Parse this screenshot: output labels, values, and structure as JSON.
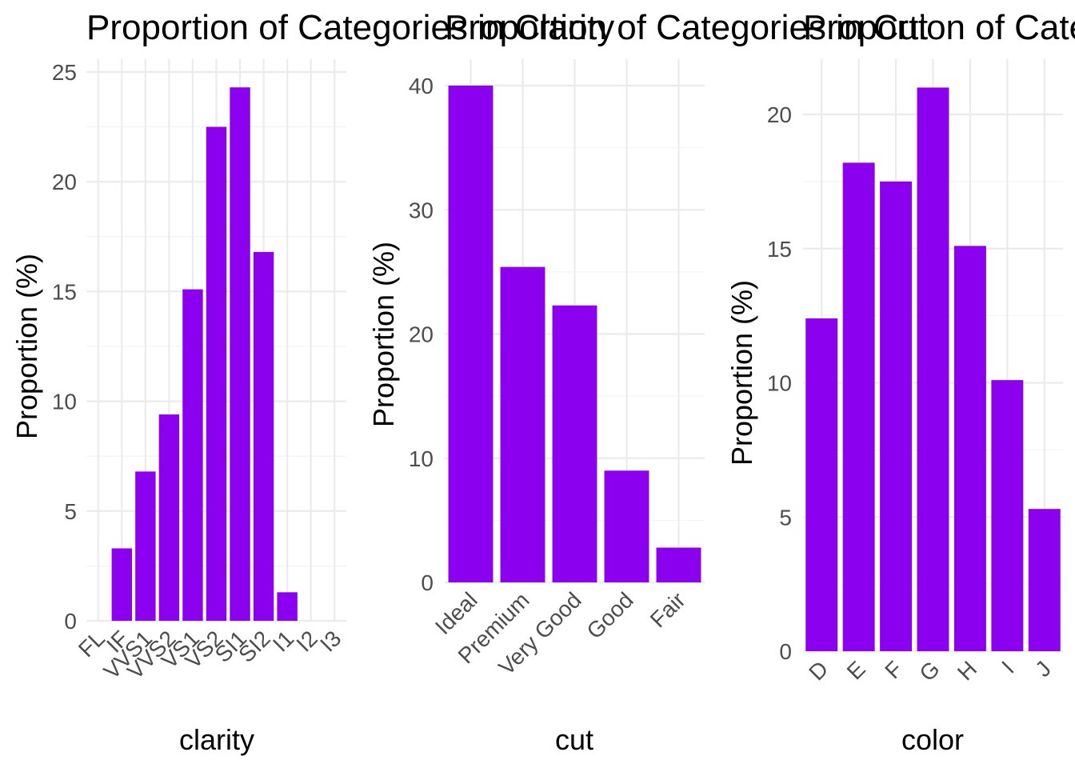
{
  "chart_data": [
    {
      "type": "bar",
      "title": "Proportion of Categories in Clarity",
      "xlabel": "clarity",
      "ylabel": "Proportion (%)",
      "categories": [
        "FL",
        "IF",
        "VVS1",
        "VVS2",
        "VS1",
        "VS2",
        "SI1",
        "SI2",
        "I1",
        "I2",
        "I3"
      ],
      "values": [
        0,
        3.3,
        6.8,
        9.4,
        15.1,
        22.5,
        24.3,
        16.8,
        1.3,
        0,
        0
      ],
      "ylim": [
        0,
        25
      ],
      "yticks": [
        0,
        5,
        10,
        15,
        20,
        25
      ],
      "bar_color": "#8B00EE",
      "grid": true
    },
    {
      "type": "bar",
      "title": "Proportion of Categories in Cut",
      "xlabel": "cut",
      "ylabel": "Proportion (%)",
      "categories": [
        "Ideal",
        "Premium",
        "Very Good",
        "Good",
        "Fair"
      ],
      "values": [
        40.0,
        25.4,
        22.3,
        9.0,
        2.8
      ],
      "ylim": [
        0,
        40
      ],
      "yticks": [
        0,
        10,
        20,
        30,
        40
      ],
      "bar_color": "#8B00EE",
      "grid": true
    },
    {
      "type": "bar",
      "title": "Proportion of Categories in Color",
      "xlabel": "color",
      "ylabel": "Proportion (%)",
      "categories": [
        "D",
        "E",
        "F",
        "G",
        "H",
        "I",
        "J"
      ],
      "values": [
        12.4,
        18.2,
        17.5,
        21.0,
        15.1,
        10.1,
        5.3
      ],
      "ylim": [
        0,
        20
      ],
      "yticks": [
        0,
        5,
        10,
        15,
        20
      ],
      "bar_color": "#8B00EE",
      "grid": true
    }
  ]
}
